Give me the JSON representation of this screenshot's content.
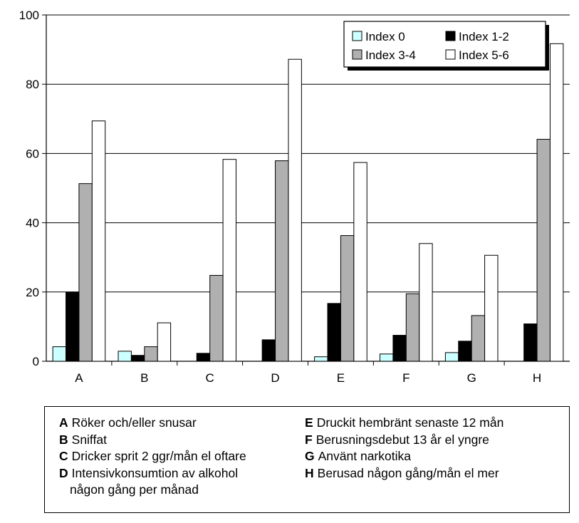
{
  "chart_data": {
    "type": "bar",
    "title": "",
    "xlabel": "",
    "ylabel": "",
    "ylim": [
      0,
      100
    ],
    "yticks": [
      0,
      20,
      40,
      60,
      80,
      100
    ],
    "grid": true,
    "legend_position": "top-right",
    "categories": [
      "A",
      "B",
      "C",
      "D",
      "E",
      "F",
      "G",
      "H"
    ],
    "series": [
      {
        "name": "Index 0",
        "color": "#ccffff",
        "values": [
          4.2,
          2.9,
          0,
          0,
          1.3,
          2.1,
          2.5,
          0
        ]
      },
      {
        "name": "Index 1-2",
        "color": "#000000",
        "values": [
          20,
          1.7,
          2.3,
          6.2,
          16.7,
          7.5,
          5.8,
          10.8
        ]
      },
      {
        "name": "Index 3-4",
        "color": "#b0b0b0",
        "values": [
          51.3,
          4.2,
          24.8,
          57.9,
          36.3,
          19.5,
          13.2,
          64.1
        ]
      },
      {
        "name": "Index 5-6",
        "color": "#ffffff",
        "values": [
          69.4,
          11.1,
          58.3,
          87.2,
          57.4,
          34,
          30.6,
          91.7
        ]
      }
    ]
  },
  "category_legend": {
    "left": [
      {
        "letter": "A",
        "text": "Röker och/eller snusar"
      },
      {
        "letter": "B",
        "text": "Sniffat"
      },
      {
        "letter": "C",
        "text": "Dricker sprit 2 ggr/mån el oftare"
      },
      {
        "letter": "D",
        "text": "Intensivkonsumtion av alkohol",
        "cont": "någon gång per månad"
      }
    ],
    "right": [
      {
        "letter": "E",
        "text": "Druckit hembränt senaste 12 mån"
      },
      {
        "letter": "F",
        "text": "Berusningsdebut 13 år el yngre"
      },
      {
        "letter": "G",
        "text": "Använt narkotika"
      },
      {
        "letter": "H",
        "text": "Berusad någon gång/mån el mer"
      }
    ]
  }
}
